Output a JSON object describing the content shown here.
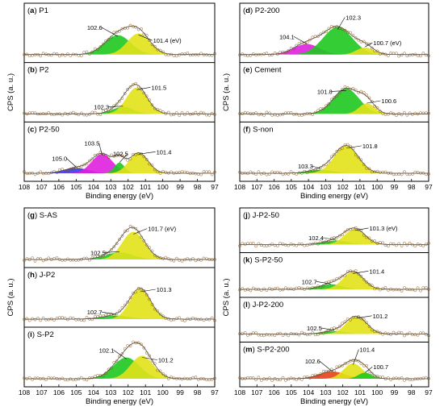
{
  "chart_data": [
    {
      "type": "area",
      "ylabel": "CPS (a. u.)",
      "xlabel": "Binding energy (eV)",
      "xlim": [
        108,
        97
      ],
      "x_ticks": [
        108,
        107,
        106,
        105,
        104,
        103,
        102,
        101,
        100,
        99,
        98,
        97
      ],
      "panels": [
        {
          "letter": "a",
          "title": "P1",
          "peaks": [
            {
              "center": 102.6,
              "amplitude": 0.55,
              "width": 0.75,
              "color": "#1fc81f"
            },
            {
              "center": 101.4,
              "amplitude": 0.6,
              "width": 0.65,
              "color": "#e2e21a"
            }
          ],
          "annotations": [
            {
              "text": "102.6",
              "x": 102.6
            },
            {
              "text": "101.4 (eV)",
              "x": 101.4
            }
          ]
        },
        {
          "letter": "b",
          "title": "P2",
          "peaks": [
            {
              "center": 102.3,
              "amplitude": 0.2,
              "width": 0.6,
              "color": "#1fc81f"
            },
            {
              "center": 101.5,
              "amplitude": 0.75,
              "width": 0.6,
              "color": "#e2e21a"
            }
          ],
          "annotations": [
            {
              "text": "102.3",
              "x": 102.3
            },
            {
              "text": "101.5",
              "x": 101.5
            }
          ]
        },
        {
          "letter": "c",
          "title": "P2-50",
          "peaks": [
            {
              "center": 105.0,
              "amplitude": 0.15,
              "width": 0.7,
              "color": "#3a3ae0"
            },
            {
              "center": 103.5,
              "amplitude": 0.55,
              "width": 0.6,
              "color": "#e020e0"
            },
            {
              "center": 102.5,
              "amplitude": 0.3,
              "width": 0.3,
              "color": "#1fc81f"
            },
            {
              "center": 101.4,
              "amplitude": 0.58,
              "width": 0.55,
              "color": "#e2e21a"
            }
          ],
          "annotations": [
            {
              "text": "105.0",
              "x": 105.0
            },
            {
              "text": "103.5",
              "x": 103.5
            },
            {
              "text": "102.5",
              "x": 102.5
            },
            {
              "text": "101.4",
              "x": 101.4
            }
          ]
        }
      ]
    },
    {
      "type": "area",
      "ylabel": "CPS (a. u.)",
      "xlabel": "Binding energy (eV)",
      "xlim": [
        108,
        97
      ],
      "x_ticks": [
        108,
        107,
        106,
        105,
        104,
        103,
        102,
        101,
        100,
        99,
        98,
        97
      ],
      "panels": [
        {
          "letter": "d",
          "title": "P2-200",
          "peaks": [
            {
              "center": 104.1,
              "amplitude": 0.3,
              "width": 0.75,
              "color": "#e020e0"
            },
            {
              "center": 102.3,
              "amplitude": 0.78,
              "width": 0.85,
              "color": "#1fc81f"
            },
            {
              "center": 100.7,
              "amplitude": 0.2,
              "width": 0.5,
              "color": "#e2e21a"
            }
          ],
          "annotations": [
            {
              "text": "104.1",
              "x": 104.1
            },
            {
              "text": "102.3",
              "x": 102.3
            },
            {
              "text": "100.7 (eV)",
              "x": 100.7
            }
          ]
        },
        {
          "letter": "e",
          "title": "Cement",
          "peaks": [
            {
              "center": 101.8,
              "amplitude": 0.72,
              "width": 0.75,
              "color": "#1fc81f"
            },
            {
              "center": 100.6,
              "amplitude": 0.3,
              "width": 0.45,
              "color": "#e2e21a"
            }
          ],
          "annotations": [
            {
              "text": "101.8",
              "x": 101.8
            },
            {
              "text": "100.6",
              "x": 100.6
            }
          ]
        },
        {
          "letter": "f",
          "title": "S-non",
          "peaks": [
            {
              "center": 103.3,
              "amplitude": 0.1,
              "width": 0.7,
              "color": "#1fc81f"
            },
            {
              "center": 101.8,
              "amplitude": 0.78,
              "width": 0.7,
              "color": "#e2e21a"
            }
          ],
          "annotations": [
            {
              "text": "103.3",
              "x": 103.3
            },
            {
              "text": "101.8",
              "x": 101.8
            }
          ]
        }
      ]
    },
    {
      "type": "area",
      "ylabel": "CPS (a. u.)",
      "xlabel": "Binding energy (eV)",
      "xlim": [
        108,
        97
      ],
      "x_ticks": [
        108,
        107,
        106,
        105,
        104,
        103,
        102,
        101,
        100,
        99,
        98,
        97
      ],
      "panels": [
        {
          "letter": "g",
          "title": "S-AS",
          "peaks": [
            {
              "center": 102.5,
              "amplitude": 0.2,
              "width": 0.8,
              "color": "#1fc81f"
            },
            {
              "center": 101.7,
              "amplitude": 0.78,
              "width": 0.65,
              "color": "#e2e21a"
            }
          ],
          "annotations": [
            {
              "text": "102.5",
              "x": 102.5
            },
            {
              "text": "101.7 (eV)",
              "x": 101.7
            }
          ]
        },
        {
          "letter": "h",
          "title": "J-P2",
          "peaks": [
            {
              "center": 102.7,
              "amplitude": 0.1,
              "width": 0.8,
              "color": "#1fc81f"
            },
            {
              "center": 101.3,
              "amplitude": 0.85,
              "width": 0.6,
              "color": "#e2e21a"
            }
          ],
          "annotations": [
            {
              "text": "102.7",
              "x": 102.7
            },
            {
              "text": "101.3",
              "x": 101.3
            }
          ]
        },
        {
          "letter": "i",
          "title": "S-P2",
          "peaks": [
            {
              "center": 102.1,
              "amplitude": 0.6,
              "width": 0.75,
              "color": "#1fc81f"
            },
            {
              "center": 101.2,
              "amplitude": 0.65,
              "width": 0.65,
              "color": "#e2e21a"
            }
          ],
          "annotations": [
            {
              "text": "102.1",
              "x": 102.1
            },
            {
              "text": "101.2",
              "x": 101.2
            }
          ]
        }
      ]
    },
    {
      "type": "area",
      "ylabel": "CPS (a. u.)",
      "xlabel": "Binding energy (eV)",
      "xlim": [
        108,
        97
      ],
      "x_ticks": [
        108,
        107,
        106,
        105,
        104,
        103,
        102,
        101,
        100,
        99,
        98,
        97
      ],
      "panels": [
        {
          "letter": "j",
          "title": "J-P2-50",
          "peaks": [
            {
              "center": 102.4,
              "amplitude": 0.2,
              "width": 0.7,
              "color": "#1fc81f"
            },
            {
              "center": 101.3,
              "amplitude": 0.75,
              "width": 0.6,
              "color": "#e2e21a"
            }
          ],
          "annotations": [
            {
              "text": "102.4",
              "x": 102.4
            },
            {
              "text": "101.3 (eV)",
              "x": 101.3
            }
          ]
        },
        {
          "letter": "k",
          "title": "S-P2-50",
          "peaks": [
            {
              "center": 102.7,
              "amplitude": 0.25,
              "width": 0.65,
              "color": "#1fc81f"
            },
            {
              "center": 101.4,
              "amplitude": 0.85,
              "width": 0.6,
              "color": "#e2e21a"
            }
          ],
          "annotations": [
            {
              "text": "102.7",
              "x": 102.7
            },
            {
              "text": "101.4",
              "x": 101.4
            }
          ]
        },
        {
          "letter": "l",
          "title": "J-P2-200",
          "peaks": [
            {
              "center": 102.5,
              "amplitude": 0.15,
              "width": 0.65,
              "color": "#1fc81f"
            },
            {
              "center": 101.2,
              "amplitude": 0.85,
              "width": 0.6,
              "color": "#e2e21a"
            }
          ],
          "annotations": [
            {
              "text": "102.5",
              "x": 102.5
            },
            {
              "text": "101.2",
              "x": 101.2
            }
          ]
        },
        {
          "letter": "m",
          "title": "S-P2-200",
          "peaks": [
            {
              "center": 102.6,
              "amplitude": 0.35,
              "width": 0.75,
              "color": "#e8401a"
            },
            {
              "center": 101.4,
              "amplitude": 0.75,
              "width": 0.55,
              "color": "#e2e21a"
            },
            {
              "center": 100.7,
              "amplitude": 0.3,
              "width": 0.4,
              "color": "#1fc81f"
            }
          ],
          "annotations": [
            {
              "text": "102.6",
              "x": 102.6
            },
            {
              "text": "101.4",
              "x": 101.4
            },
            {
              "text": "100.7",
              "x": 100.7
            }
          ]
        }
      ]
    }
  ]
}
